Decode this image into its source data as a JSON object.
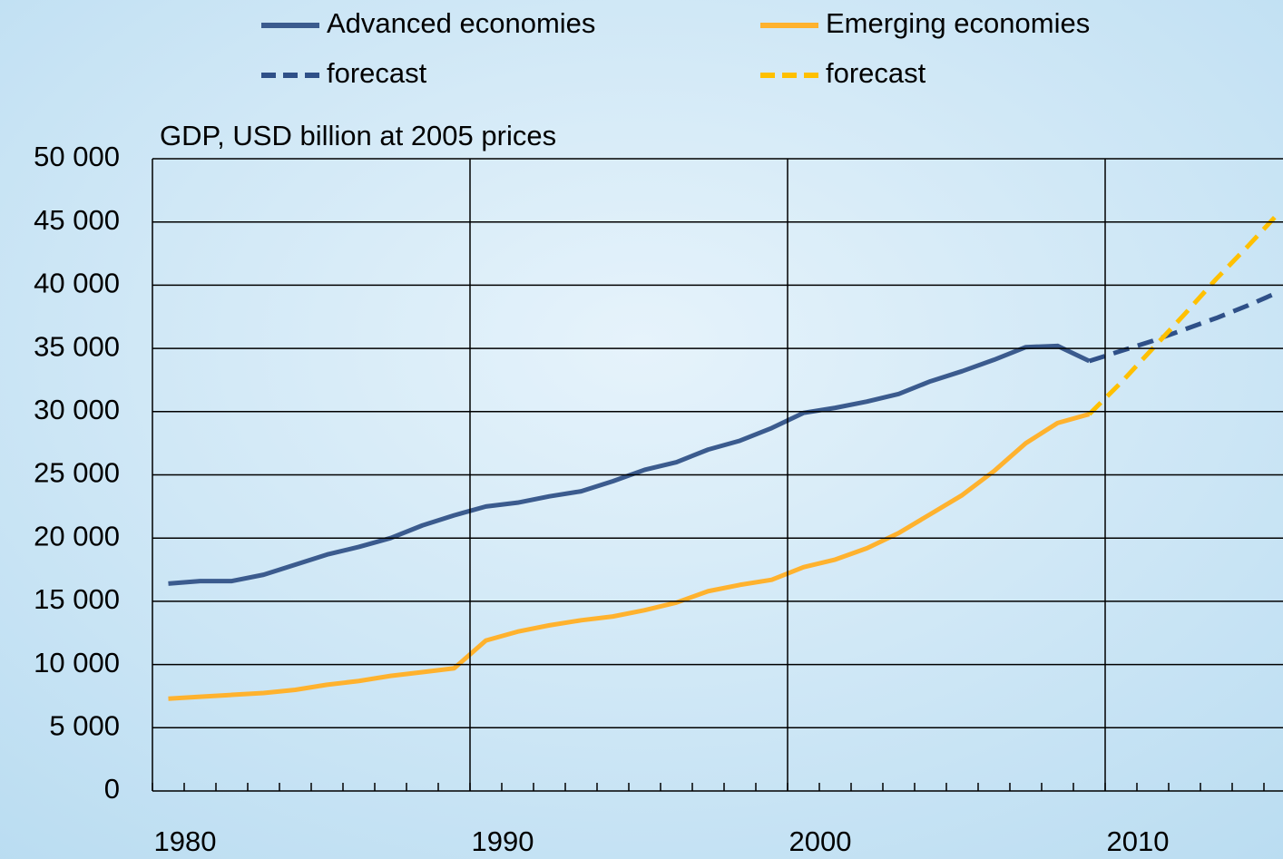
{
  "chart_data": {
    "type": "line",
    "title": "GDP, USD billion at 2005 prices",
    "categories": [
      "1980",
      null,
      null,
      null,
      null,
      null,
      null,
      null,
      null,
      null,
      "1990",
      null,
      null,
      null,
      null,
      null,
      null,
      null,
      null,
      null,
      "2000",
      null,
      null,
      null,
      null,
      null,
      null,
      null,
      null,
      null,
      "2010",
      null,
      null,
      null,
      null,
      null
    ],
    "series": [
      {
        "name": "Advanced economies",
        "color": "#3b5b8e",
        "dash": false,
        "values": [
          16400,
          16600,
          16600,
          17100,
          17900,
          18700,
          19300,
          20000,
          21000,
          21800,
          22500,
          22800,
          23300,
          23700,
          24500,
          25400,
          26000,
          27000,
          27700,
          28700,
          29900,
          30300,
          30800,
          31400,
          32400,
          33200,
          34100,
          35100,
          35200,
          34000,
          null,
          null,
          null,
          null,
          null,
          null
        ]
      },
      {
        "name": "Emerging economies",
        "color": "#ffb22e",
        "dash": false,
        "values": [
          7300,
          7450,
          7600,
          7750,
          8000,
          8400,
          8700,
          9100,
          9400,
          9700,
          11900,
          12600,
          13100,
          13500,
          13800,
          14300,
          14900,
          15800,
          16300,
          16700,
          17700,
          18300,
          19200,
          20400,
          21900,
          23400,
          25300,
          27500,
          29100,
          29800,
          null,
          null,
          null,
          null,
          null,
          null
        ]
      },
      {
        "name": "forecast",
        "color": "#2f5088",
        "dash": true,
        "values": [
          null,
          null,
          null,
          null,
          null,
          null,
          null,
          null,
          null,
          null,
          null,
          null,
          null,
          null,
          null,
          null,
          null,
          null,
          null,
          null,
          null,
          null,
          null,
          null,
          null,
          null,
          null,
          null,
          null,
          34000,
          34800,
          35600,
          36500,
          37400,
          38400,
          39500
        ]
      },
      {
        "name": "forecast",
        "color": "#ffc000",
        "dash": true,
        "values": [
          null,
          null,
          null,
          null,
          null,
          null,
          null,
          null,
          null,
          null,
          null,
          null,
          null,
          null,
          null,
          null,
          null,
          null,
          null,
          null,
          null,
          null,
          null,
          null,
          null,
          null,
          null,
          null,
          null,
          29800,
          32300,
          35000,
          37700,
          40500,
          43100,
          45800
        ]
      }
    ],
    "ylim": [
      0,
      50000
    ],
    "yticks": [
      0,
      {
        "value": 5000,
        "label": "5 000"
      },
      {
        "value": 10000,
        "label": "10 000"
      },
      {
        "value": 15000,
        "label": "15 000"
      },
      {
        "value": 20000,
        "label": "20 000"
      },
      {
        "value": 25000,
        "label": "25 000"
      },
      {
        "value": 30000,
        "label": "30 000"
      },
      {
        "value": 35000,
        "label": "35 000"
      },
      {
        "value": 40000,
        "label": "40 000"
      },
      {
        "value": 45000,
        "label": "45 000"
      },
      {
        "value": 50000,
        "label": "50 000"
      }
    ],
    "grid": true
  }
}
